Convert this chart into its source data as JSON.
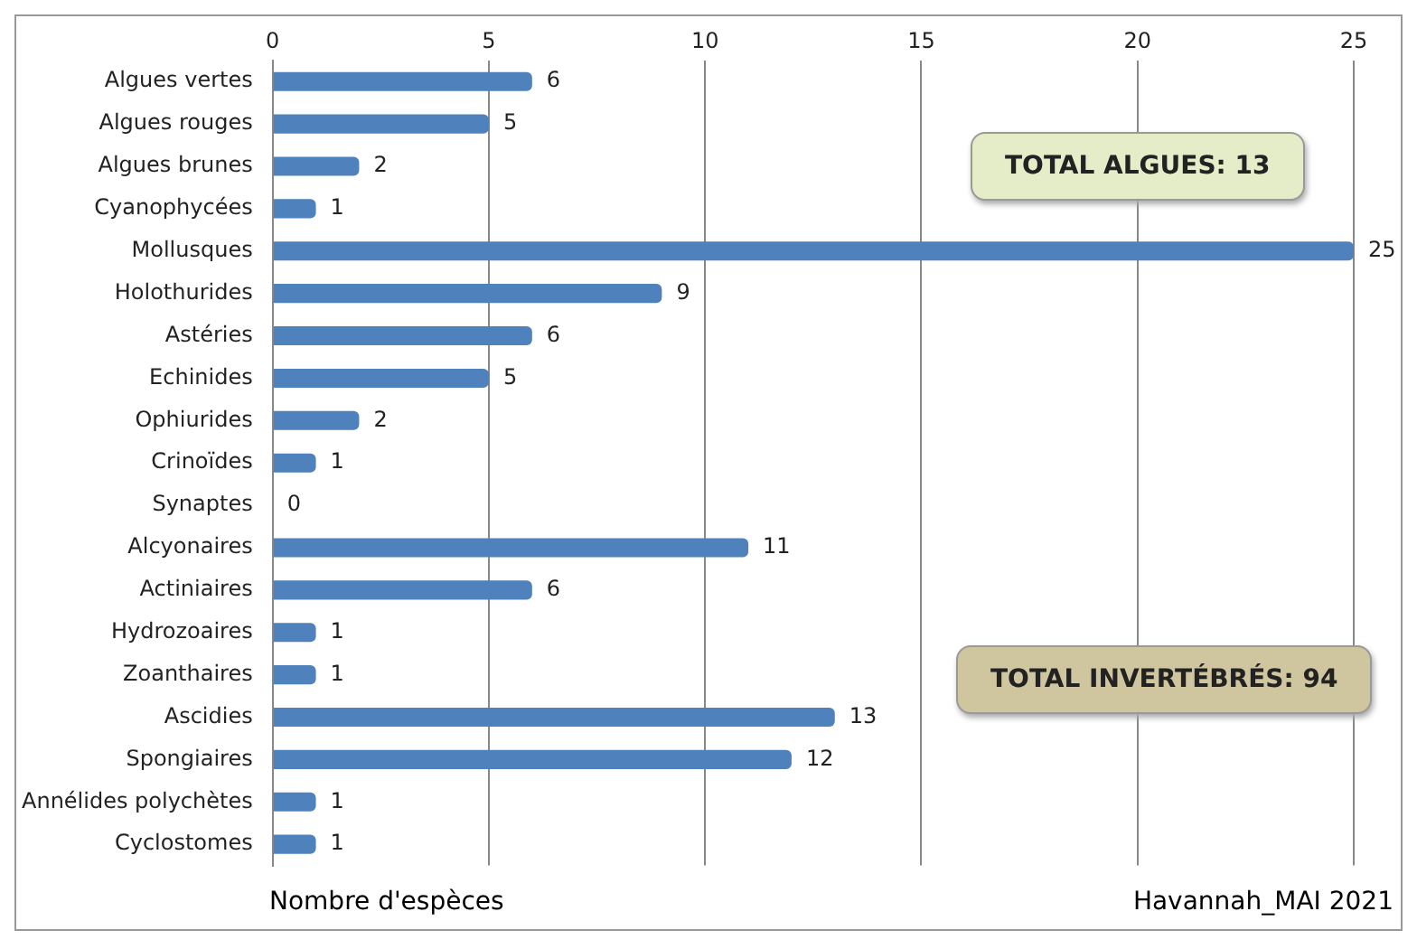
{
  "chart_data": {
    "type": "bar",
    "orientation": "horizontal",
    "xlabel": "Nombre d'espèces",
    "categories": [
      "Algues vertes",
      "Algues rouges",
      "Algues brunes",
      "Cyanophycées",
      "Mollusques",
      "Holothurides",
      "Astéries",
      "Echinides",
      "Ophiurides",
      "Crinoïdes",
      "Synaptes",
      "Alcyonaires",
      "Actiniaires",
      "Hydrozoaires",
      "Zoanthaires",
      "Ascidies",
      "Spongiaires",
      "Annélides polychètes",
      "Cyclostomes"
    ],
    "values": [
      6,
      5,
      2,
      1,
      25,
      9,
      6,
      5,
      2,
      1,
      0,
      11,
      6,
      1,
      1,
      13,
      12,
      1,
      1
    ],
    "color": "#4f81bd",
    "xlim": [
      0,
      25
    ],
    "xticks": [
      0,
      5,
      10,
      15,
      20,
      25
    ],
    "grid": "x",
    "data_labels": true,
    "legend": false,
    "annotations": [
      "TOTAL ALGUES: 13",
      "TOTAL INVERTÉBRÉS: 94",
      "Havannah_MAI 2021"
    ]
  }
}
